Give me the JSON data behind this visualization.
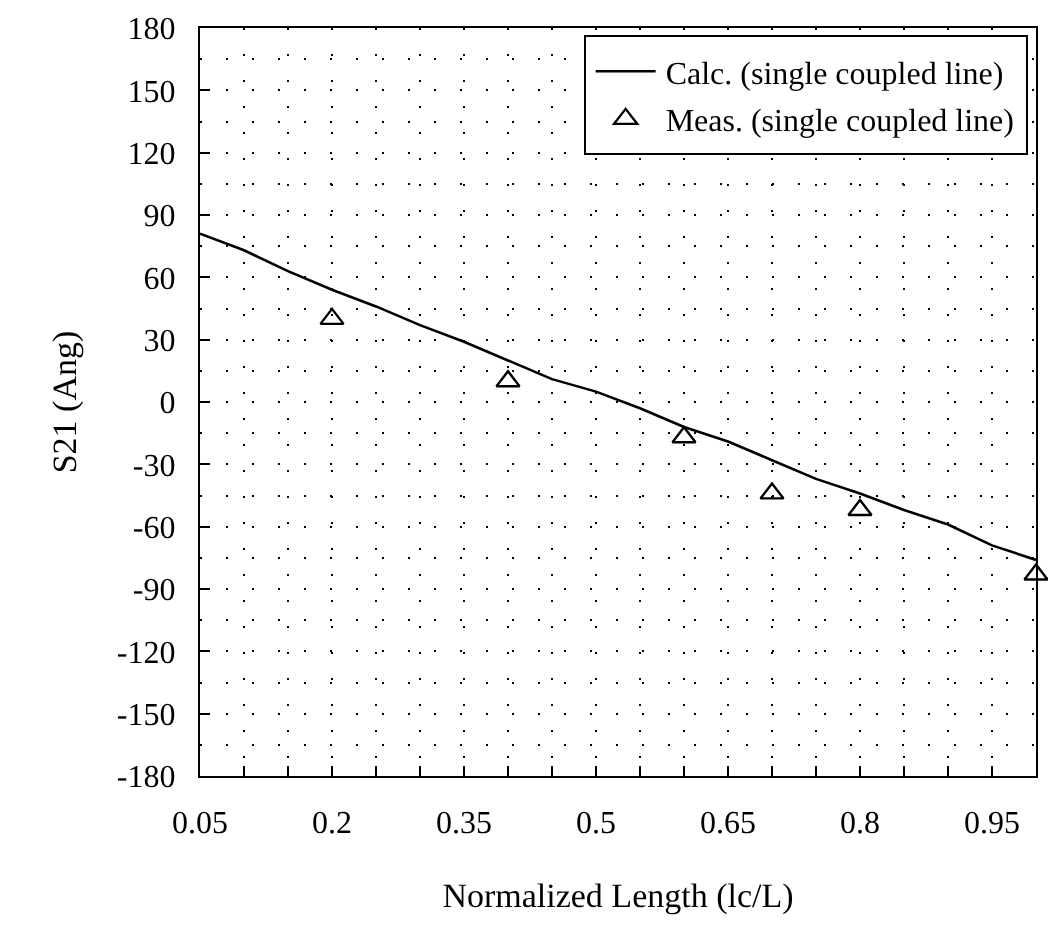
{
  "chart_data": {
    "type": "line",
    "xlabel": "Normalized Length (lc/L)",
    "ylabel": "S21 (Ang)",
    "xlim": [
      0.05,
      1.0
    ],
    "xticks": [
      0.05,
      0.2,
      0.35,
      0.5,
      0.65,
      0.8,
      0.95
    ],
    "ylim": [
      -180,
      180
    ],
    "yticks": [
      -180,
      -150,
      -120,
      -90,
      -60,
      -30,
      0,
      30,
      60,
      90,
      120,
      150,
      180
    ],
    "grid": true,
    "legend": "top right",
    "series": [
      {
        "name": "Calc. (single coupled line)",
        "color": "#000000",
        "line_style": "solid",
        "marker": "none",
        "x": [
          0.05,
          0.1,
          0.15,
          0.2,
          0.25,
          0.3,
          0.35,
          0.4,
          0.45,
          0.5,
          0.55,
          0.6,
          0.65,
          0.7,
          0.75,
          0.8,
          0.85,
          0.9,
          0.95,
          1.0
        ],
        "values": [
          81,
          73,
          63,
          54,
          46,
          37,
          29,
          20,
          11,
          5,
          -3,
          -12,
          -19,
          -28,
          -37,
          -44,
          -52,
          -59,
          -69,
          -76
        ]
      },
      {
        "name": "Meas. (single coupled line)",
        "type": "scatter",
        "color": "#000000",
        "marker": "triangle",
        "x": [
          0.2,
          0.4,
          0.6,
          0.7,
          0.8,
          1.0
        ],
        "values": [
          40,
          10,
          -17,
          -44,
          -52,
          -83
        ]
      }
    ]
  }
}
